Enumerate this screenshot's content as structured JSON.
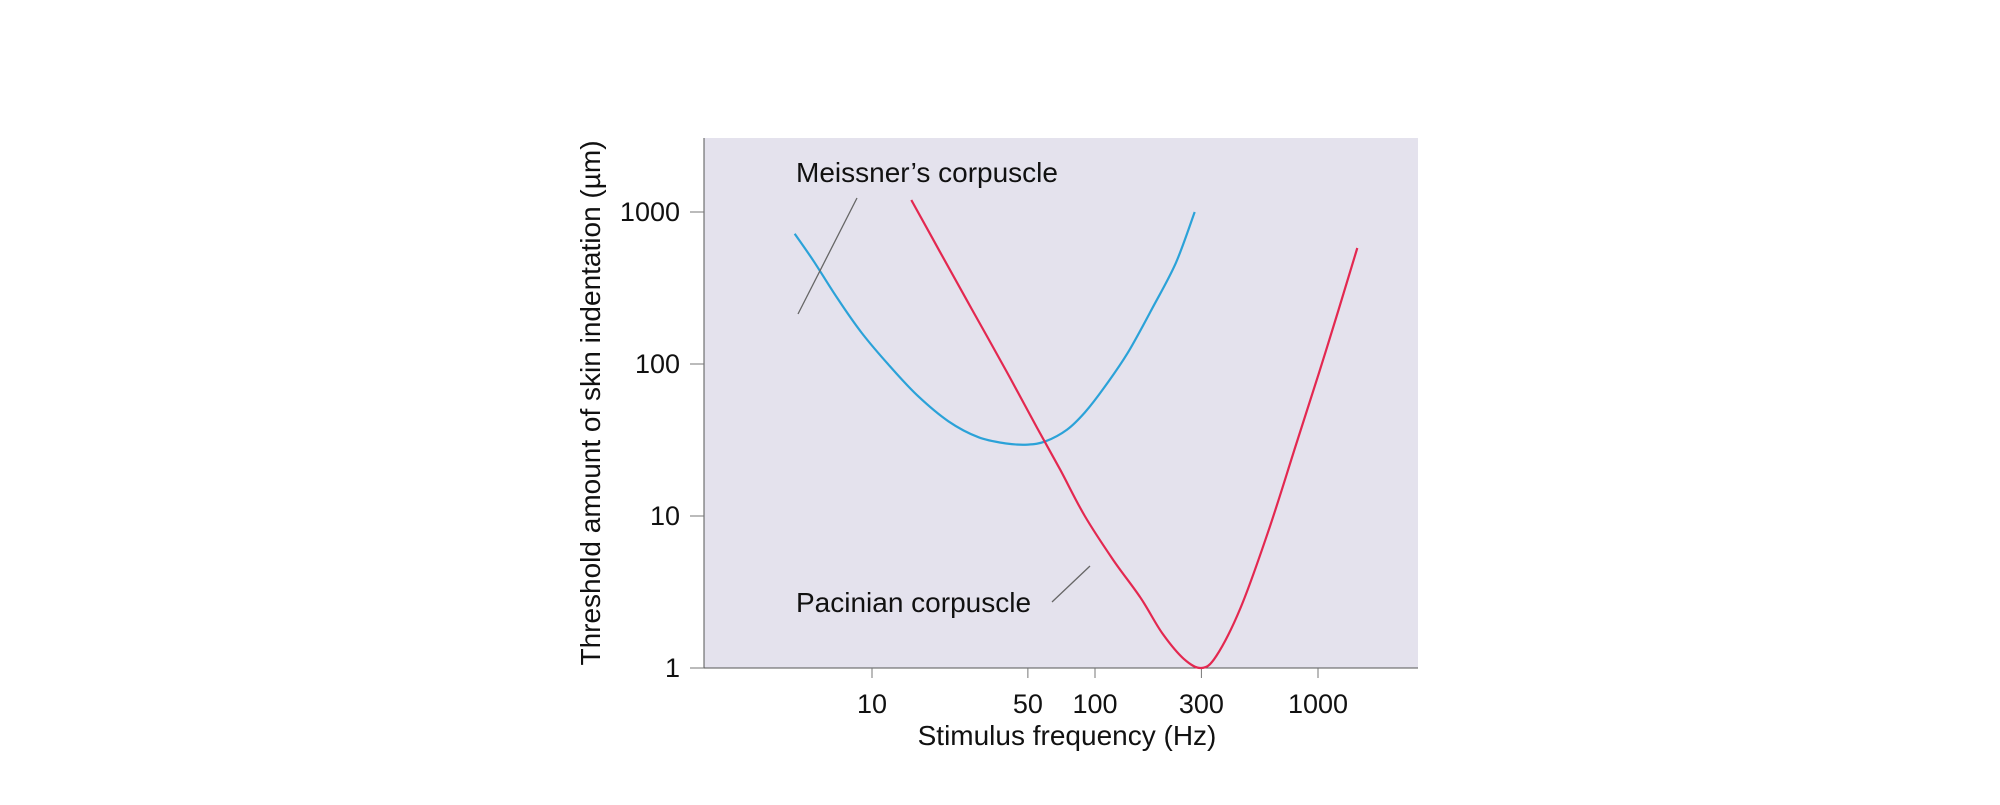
{
  "chart_data": {
    "type": "line",
    "xlabel": "Stimulus frequency (Hz)",
    "ylabel": "Threshold amount of skin indentation (µm)",
    "x_scale": "log",
    "y_scale": "log",
    "xlim": [
      3,
      1900
    ],
    "ylim": [
      1,
      3700
    ],
    "x_ticks": [
      {
        "value": 10,
        "label": "10"
      },
      {
        "value": 50,
        "label": "50"
      },
      {
        "value": 100,
        "label": "100"
      },
      {
        "value": 300,
        "label": "300"
      },
      {
        "value": 1000,
        "label": "1000"
      }
    ],
    "y_ticks": [
      {
        "value": 1,
        "label": "1"
      },
      {
        "value": 10,
        "label": "10"
      },
      {
        "value": 100,
        "label": "100"
      },
      {
        "value": 1000,
        "label": "1000"
      }
    ],
    "grid": false,
    "plot_background": "#e4e2ed",
    "series": [
      {
        "name": "Meissner’s corpuscle",
        "color": "#2ba2d8",
        "points": [
          [
            4.5,
            720
          ],
          [
            5.5,
            470
          ],
          [
            7,
            270
          ],
          [
            9,
            160
          ],
          [
            12,
            97
          ],
          [
            16,
            62
          ],
          [
            22,
            42
          ],
          [
            30,
            33
          ],
          [
            40,
            30
          ],
          [
            50,
            29.5
          ],
          [
            60,
            31
          ],
          [
            75,
            37
          ],
          [
            90,
            48
          ],
          [
            110,
            70
          ],
          [
            140,
            118
          ],
          [
            180,
            230
          ],
          [
            230,
            460
          ],
          [
            280,
            1000
          ]
        ]
      },
      {
        "name": "Pacinian corpuscle",
        "color": "#e32850",
        "points": [
          [
            15,
            1200
          ],
          [
            20,
            560
          ],
          [
            28,
            230
          ],
          [
            40,
            90
          ],
          [
            55,
            38
          ],
          [
            70,
            20
          ],
          [
            90,
            10
          ],
          [
            120,
            5.2
          ],
          [
            160,
            2.9
          ],
          [
            200,
            1.7
          ],
          [
            250,
            1.15
          ],
          [
            300,
            1.0
          ],
          [
            350,
            1.2
          ],
          [
            450,
            2.5
          ],
          [
            600,
            8
          ],
          [
            800,
            30
          ],
          [
            1100,
            130
          ],
          [
            1500,
            580
          ]
        ]
      }
    ],
    "annotations": [
      {
        "text": "Meissner’s corpuscle",
        "series": 0
      },
      {
        "text": "Pacinian corpuscle",
        "series": 1
      }
    ]
  }
}
